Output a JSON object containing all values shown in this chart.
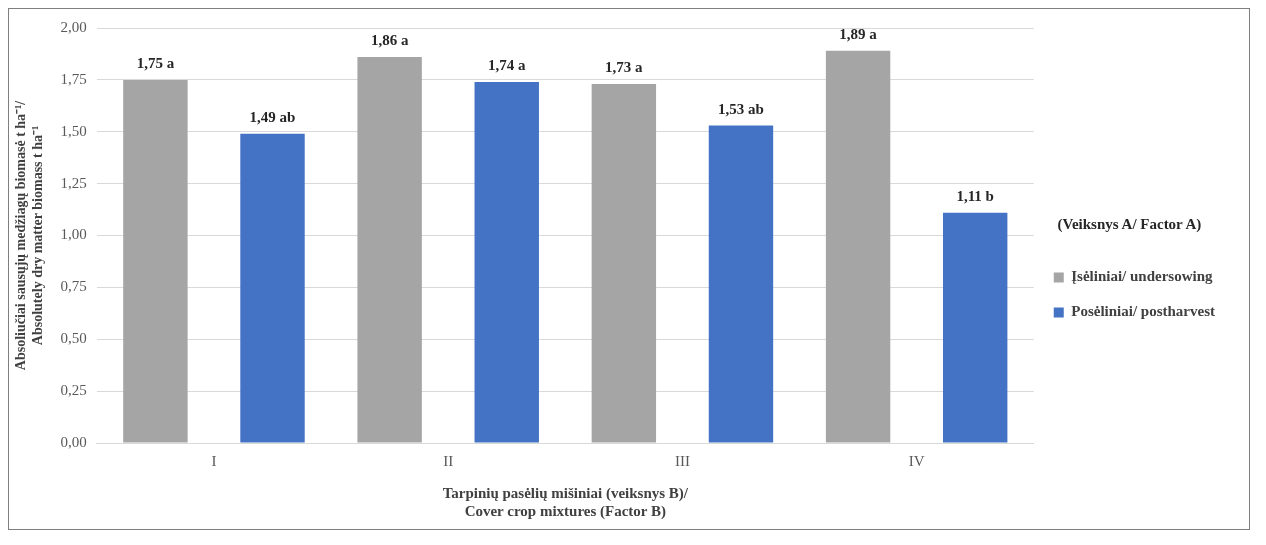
{
  "chart_data": {
    "type": "bar",
    "categories": [
      "I",
      "II",
      "III",
      "IV"
    ],
    "series": [
      {
        "name": "Įsėliniai/ undersowing",
        "color": "#a5a5a5",
        "values": [
          1.75,
          1.86,
          1.73,
          1.89
        ],
        "value_labels": [
          "1,75 a",
          "1,86 a",
          "1,73 a",
          "1,89 a"
        ]
      },
      {
        "name": "Posėliniai/ postharvest",
        "color": "#4472c4",
        "values": [
          1.49,
          1.74,
          1.53,
          1.11
        ],
        "value_labels": [
          "1,49 ab",
          "1,74 a",
          "1,53 ab",
          "1,11 b"
        ]
      }
    ],
    "xlabel": "Tarpinių pasėlių mišiniai (veiksnys B)/ Cover crop mixtures (Factor B)",
    "ylabel": "Absoliučiai sausųjų medžiagų biomasė t ha⁻¹/ Absolutely dry matter biomass t ha⁻¹",
    "legend_title": "(Veiksnys A/ Factor A)",
    "ylim": [
      0,
      2
    ],
    "yticks": [
      {
        "value": 0,
        "label": "0,00"
      },
      {
        "value": 0.25,
        "label": "0,25"
      },
      {
        "value": 0.5,
        "label": "0,50"
      },
      {
        "value": 0.75,
        "label": "0,75"
      },
      {
        "value": 1,
        "label": "1,00"
      },
      {
        "value": 1.25,
        "label": "1,25"
      },
      {
        "value": 1.5,
        "label": "1,50"
      },
      {
        "value": 1.75,
        "label": "1,75"
      },
      {
        "value": 2,
        "label": "2,00"
      }
    ],
    "grid": "y",
    "legend": "right"
  }
}
